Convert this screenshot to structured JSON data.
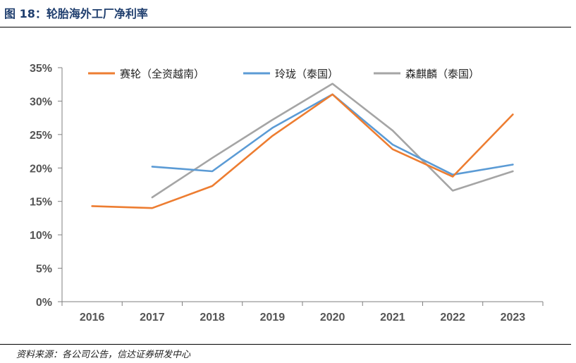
{
  "figure_title": "图 18：轮胎海外工厂净利率",
  "source_note": "资料来源：各公司公告，信达证券研发中心",
  "colors": {
    "axis": "#7f7f7f",
    "tick_text": "#555555"
  },
  "chart_data": {
    "type": "line",
    "title": "",
    "xlabel": "",
    "ylabel": "",
    "categories": [
      "2016",
      "2017",
      "2018",
      "2019",
      "2020",
      "2021",
      "2022",
      "2023"
    ],
    "ylim": [
      0,
      35
    ],
    "yticks": [
      0,
      5,
      10,
      15,
      20,
      25,
      30,
      35
    ],
    "y_format": "percent",
    "grid": false,
    "legend_position": "top",
    "series": [
      {
        "name": "赛轮（全资越南）",
        "color": "#ed7d31",
        "values": [
          14.3,
          14.0,
          17.3,
          24.8,
          31.0,
          22.8,
          18.7,
          28.0
        ]
      },
      {
        "name": "玲珑（泰国）",
        "color": "#5b9bd5",
        "values": [
          null,
          20.2,
          19.5,
          26.0,
          31.0,
          23.5,
          19.0,
          20.5
        ]
      },
      {
        "name": "森麒麟（泰国）",
        "color": "#a5a5a5",
        "values": [
          null,
          15.6,
          21.5,
          27.2,
          32.6,
          25.6,
          16.6,
          19.5
        ]
      }
    ]
  }
}
